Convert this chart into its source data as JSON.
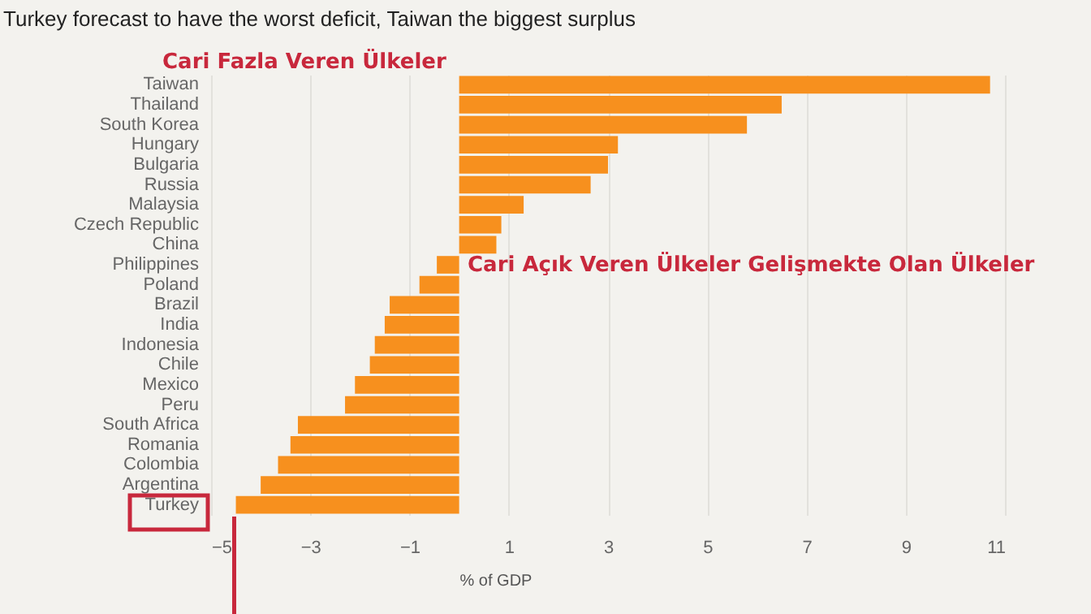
{
  "chart_data": {
    "type": "bar",
    "orientation": "horizontal",
    "title": "Turkey forecast to have the worst deficit, Taiwan the biggest surplus",
    "xlabel": "% of GDP",
    "categories": [
      "Taiwan",
      "Thailand",
      "South Korea",
      "Hungary",
      "Bulgaria",
      "Russia",
      "Malaysia",
      "Czech Republic",
      "China",
      "Philippines",
      "Poland",
      "Brazil",
      "India",
      "Indonesia",
      "Chile",
      "Mexico",
      "Peru",
      "South Africa",
      "Romania",
      "Colombia",
      "Argentina",
      "Turkey"
    ],
    "values": [
      10.7,
      6.5,
      5.8,
      3.2,
      3.0,
      2.65,
      1.3,
      0.85,
      0.75,
      -0.45,
      -0.8,
      -1.4,
      -1.5,
      -1.7,
      -1.8,
      -2.1,
      -2.3,
      -3.25,
      -3.4,
      -3.65,
      -4.0,
      -4.5
    ],
    "color": "#f7901e",
    "xlim": [
      -5,
      11
    ],
    "xticks": [
      -5,
      -3,
      -1,
      1,
      3,
      5,
      7,
      9,
      11
    ],
    "grid": "x",
    "annotations": [
      "Cari Fazla Veren Ülkeler",
      "Cari Açık Veren Ülkeler Gelişmekte Olan Ülkeler"
    ]
  }
}
